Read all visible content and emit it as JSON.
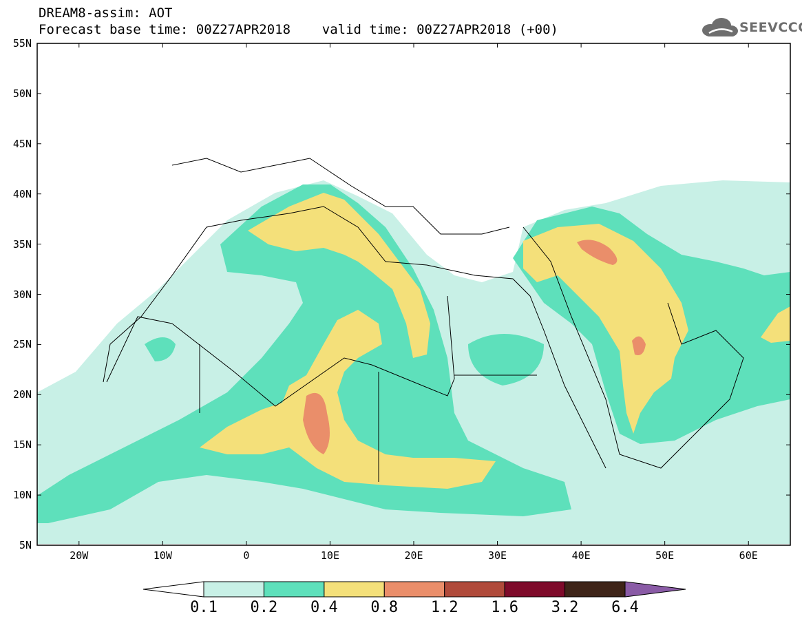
{
  "header": {
    "title_line1": "DREAM8-assim: AOT",
    "title_line2": "Forecast base time: 00Z27APR2018    valid time: 00Z27APR2018 (+00)",
    "logo_text": "SEEVCCC"
  },
  "map": {
    "projection": "lat-lon",
    "lat_range": [
      5,
      55
    ],
    "lon_range": [
      -25,
      65
    ],
    "lat_ticks": [
      "55N",
      "50N",
      "45N",
      "40N",
      "35N",
      "30N",
      "25N",
      "20N",
      "15N",
      "10N",
      "5N"
    ],
    "lon_ticks": [
      "20W",
      "10W",
      "0",
      "10E",
      "20E",
      "30E",
      "40E",
      "50E",
      "60E"
    ]
  },
  "colorbar": {
    "levels": [
      "0.1",
      "0.2",
      "0.4",
      "0.8",
      "1.2",
      "1.6",
      "3.2",
      "6.4"
    ],
    "colors": [
      "#c8f0e6",
      "#5ee0bb",
      "#f4e07a",
      "#ea8e6a",
      "#b04a3a",
      "#7e0a2a",
      "#3e2418",
      "#8a5ba6"
    ],
    "under_color": "#ffffff",
    "over_color": "#8a5ba6"
  }
}
